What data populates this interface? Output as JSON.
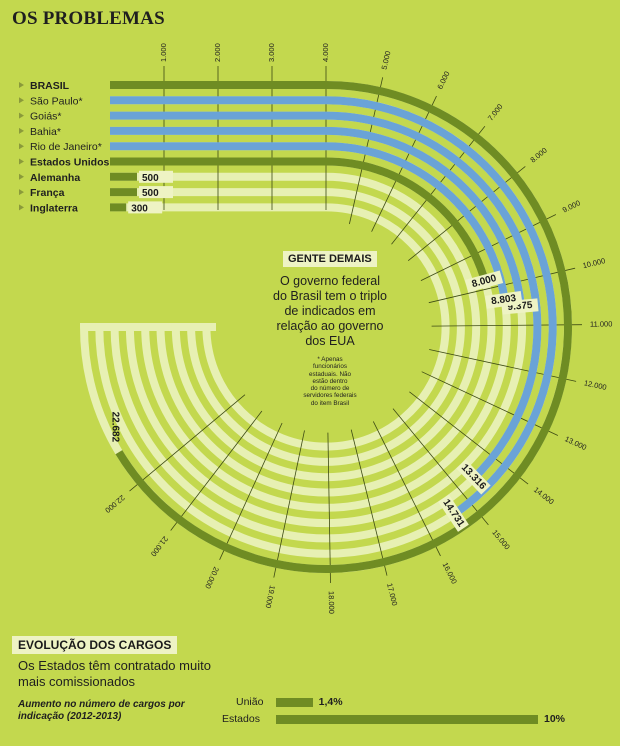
{
  "title": "OS PROBLEMAS",
  "center_box": {
    "heading": "GENTE DEMAIS",
    "text_lines": [
      "O governo federal",
      "do Brasil tem o triplo",
      "de indicados em",
      "relação ao governo",
      "dos EUA"
    ]
  },
  "footnote_lines": [
    "* Apenas",
    "funcionários",
    "estaduais. Não",
    "estão dentro",
    "do número de",
    "servidores federais",
    "do item Brasil"
  ],
  "colors": {
    "background": "#c3d84e",
    "dark_olive": "#6f8c23",
    "blue": "#6aa3d7",
    "pale": "#e7f0b3"
  },
  "chart_data": [
    {
      "type": "bar",
      "subtype": "radial-spiral",
      "title": "",
      "xlabel": "",
      "ylabel": "",
      "ticks": [
        1000,
        2000,
        3000,
        4000,
        5000,
        6000,
        7000,
        8000,
        9000,
        10000,
        11000,
        12000,
        13000,
        14000,
        15000,
        16000,
        17000,
        18000,
        19000,
        20000,
        21000,
        22000
      ],
      "tick_labels": [
        "1.000",
        "2.000",
        "3.000",
        "4.000",
        "5.000",
        "6.000",
        "7.000",
        "8.000",
        "9.000",
        "10.000",
        "11.000",
        "12.000",
        "13.000",
        "14.000",
        "15.000",
        "16.000",
        "17.000",
        "18.000",
        "19.000",
        "20.000",
        "21.000",
        "22.000"
      ],
      "xlim": [
        0,
        22682
      ],
      "categories": [
        "BRASIL",
        "São Paulo*",
        "Goiás*",
        "Bahia*",
        "Rio de Janeiro*",
        "Estados Unidos",
        "Alemanha",
        "França",
        "Inglaterra"
      ],
      "values": [
        22682,
        14731,
        13316,
        9375,
        8803,
        8000,
        500,
        500,
        300
      ],
      "value_labels": [
        "22.682",
        "14.731",
        "13.316",
        "9.375",
        "8.803",
        "8.000",
        "500",
        "500",
        "300"
      ],
      "label_weights": [
        "bold",
        "normal",
        "normal",
        "normal",
        "normal",
        "bold",
        "bold",
        "bold",
        "bold"
      ],
      "bar_colors": [
        "#6f8c23",
        "#6aa3d7",
        "#6aa3d7",
        "#6aa3d7",
        "#6aa3d7",
        "#6f8c23",
        "#6f8c23",
        "#6f8c23",
        "#6f8c23"
      ]
    },
    {
      "type": "bar",
      "title": "EVOLUÇÃO DOS CARGOS",
      "subtitle": "Os Estados têm contratado muito mais comissionados",
      "note": "Aumento no número de cargos por indicação (2012-2013)",
      "categories": [
        "União",
        "Estados"
      ],
      "values": [
        1.4,
        10
      ],
      "value_labels": [
        "1,4%",
        "10%"
      ]
    }
  ]
}
